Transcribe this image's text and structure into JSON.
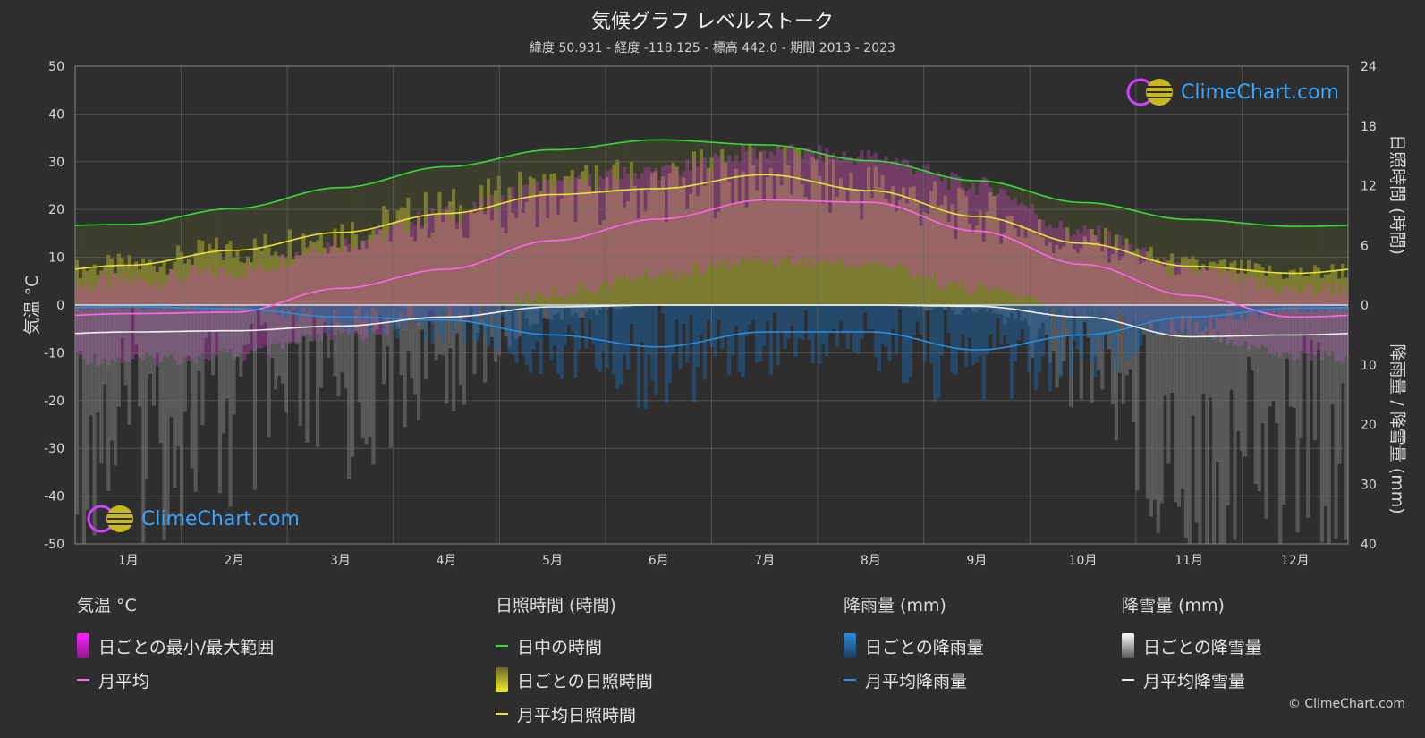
{
  "title": "気候グラフ レベルストーク",
  "subtitle": "緯度 50.931 - 経度 -118.125 - 標高 442.0 - 期間 2013 - 2023",
  "logo_text": "ClimeChart.com",
  "copyright": "© ClimeChart.com",
  "chart_data": {
    "type": "line",
    "months": [
      "1月",
      "2月",
      "3月",
      "4月",
      "5月",
      "6月",
      "7月",
      "8月",
      "9月",
      "10月",
      "11月",
      "12月"
    ],
    "left_axis": {
      "label": "気温 °C",
      "range": [
        -50,
        50
      ],
      "ticks": [
        50,
        40,
        30,
        20,
        10,
        0,
        -10,
        -20,
        -30,
        -40,
        -50
      ]
    },
    "right_axis_top": {
      "label": "日照時間 (時間)",
      "range": [
        0,
        24
      ],
      "ticks": [
        24,
        18,
        12,
        6,
        0
      ]
    },
    "right_axis_bottom": {
      "label": "降雨量 / 降雪量 (mm)",
      "range": [
        0,
        40
      ],
      "ticks": [
        10,
        20,
        30,
        40
      ]
    },
    "series": [
      {
        "name": "日中の時間",
        "unit": "hours",
        "color": "#33dd33",
        "values": [
          8.1,
          9.7,
          11.8,
          13.9,
          15.6,
          16.6,
          16.1,
          14.5,
          12.5,
          10.3,
          8.6,
          7.9
        ]
      },
      {
        "name": "月平均日照時間",
        "unit": "hours",
        "color": "#e6e633",
        "values": [
          4.0,
          5.5,
          7.3,
          9.2,
          11.1,
          11.7,
          13.1,
          11.5,
          8.9,
          6.2,
          3.9,
          3.2
        ]
      },
      {
        "name": "月平均",
        "unit": "°C",
        "color": "#ff66ee",
        "values": [
          -1.8,
          -1.5,
          3.5,
          7.5,
          13.5,
          18.0,
          22.0,
          21.5,
          15.5,
          8.5,
          2.0,
          -2.5
        ]
      },
      {
        "name": "月平均降雨量",
        "unit": "mm",
        "color": "#2a8fe0",
        "values": [
          0.3,
          0.6,
          2.0,
          2.5,
          5.0,
          7.0,
          4.5,
          4.5,
          7.5,
          5.0,
          2.0,
          0.5
        ]
      },
      {
        "name": "月平均降雪量",
        "unit": "mm",
        "color": "#f0f0f0",
        "values": [
          4.5,
          4.3,
          3.5,
          2.0,
          0.3,
          0.0,
          0.0,
          0.0,
          0.2,
          2.0,
          5.3,
          5.0
        ]
      }
    ],
    "daily_temp_range": {
      "min": [
        -10,
        -9,
        -5,
        -1,
        4,
        8,
        11,
        10,
        5,
        0,
        -4,
        -9
      ],
      "max": [
        3,
        5,
        11,
        17,
        23,
        26,
        30,
        29,
        23,
        13,
        5,
        1
      ]
    }
  },
  "legend": [
    {
      "head": "気温 °C",
      "items": [
        {
          "kind": "bar",
          "color": "#ff22ff",
          "label": "日ごとの最小/最大範囲"
        },
        {
          "kind": "line",
          "color": "#ff66ee",
          "label": "月平均"
        }
      ]
    },
    {
      "head": "日照時間 (時間)",
      "items": [
        {
          "kind": "line",
          "color": "#33dd33",
          "label": "日中の時間"
        },
        {
          "kind": "bar",
          "color": "#e6e633",
          "label": "日ごとの日照時間"
        },
        {
          "kind": "line",
          "color": "#e6e633",
          "label": "月平均日照時間"
        }
      ]
    },
    {
      "head": "降雨量 (mm)",
      "items": [
        {
          "kind": "bar",
          "color": "#2a8fe0",
          "label": "日ごとの降雨量"
        },
        {
          "kind": "line",
          "color": "#2a8fe0",
          "label": "月平均降雨量"
        }
      ]
    },
    {
      "head": "降雪量 (mm)",
      "items": [
        {
          "kind": "bar",
          "color": "#ffffff",
          "label": "日ごとの降雪量"
        },
        {
          "kind": "line",
          "color": "#f0f0f0",
          "label": "月平均降雪量"
        }
      ]
    }
  ]
}
